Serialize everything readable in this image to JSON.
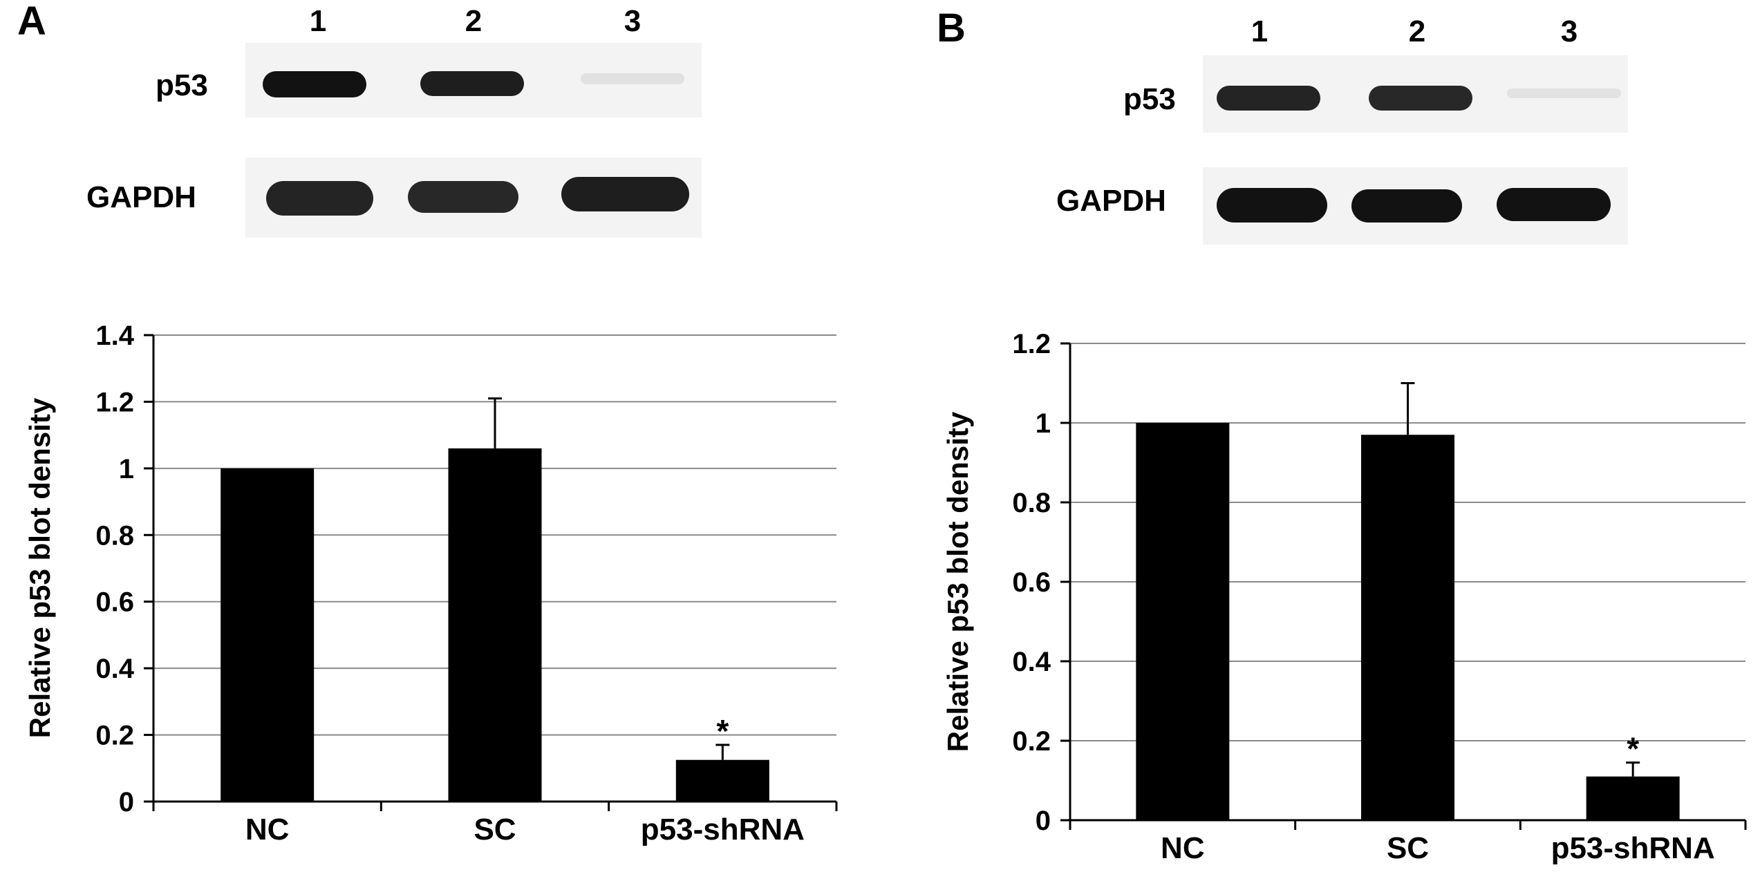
{
  "panels": [
    {
      "letter": "A",
      "lanes": [
        "1",
        "2",
        "3"
      ],
      "blot_rows": [
        {
          "label": "p53",
          "intensity": [
            1.0,
            0.95,
            0.08
          ]
        },
        {
          "label": "GAPDH",
          "intensity": [
            0.92,
            0.9,
            0.95
          ]
        }
      ]
    },
    {
      "letter": "B",
      "lanes": [
        "1",
        "2",
        "3"
      ],
      "blot_rows": [
        {
          "label": "p53",
          "intensity": [
            0.92,
            0.9,
            0.07
          ]
        },
        {
          "label": "GAPDH",
          "intensity": [
            1.0,
            1.0,
            1.0
          ]
        }
      ]
    }
  ],
  "chart_data": [
    {
      "type": "bar",
      "categories": [
        "NC",
        "SC",
        "p53-shRNA"
      ],
      "values": [
        1.0,
        1.06,
        0.125
      ],
      "errors": [
        0,
        0.15,
        0.045
      ],
      "annotations": [
        "",
        "",
        "*"
      ],
      "ylabel": "Relative p53 blot density",
      "ylim": [
        0,
        1.4
      ],
      "yticks": [
        "0",
        "0.2",
        "0.4",
        "0.6",
        "0.8",
        "1",
        "1.2",
        "1.4"
      ],
      "grid": true,
      "color": "#000000"
    },
    {
      "type": "bar",
      "categories": [
        "NC",
        "SC",
        "p53-shRNA"
      ],
      "values": [
        1.0,
        0.97,
        0.11
      ],
      "errors": [
        0,
        0.13,
        0.035
      ],
      "annotations": [
        "",
        "",
        "*"
      ],
      "ylabel": "Relative p53 blot density",
      "ylim": [
        0,
        1.2
      ],
      "yticks": [
        "0",
        "0.2",
        "0.4",
        "0.6",
        "0.8",
        "1",
        "1.2"
      ],
      "grid": true,
      "color": "#000000"
    }
  ]
}
